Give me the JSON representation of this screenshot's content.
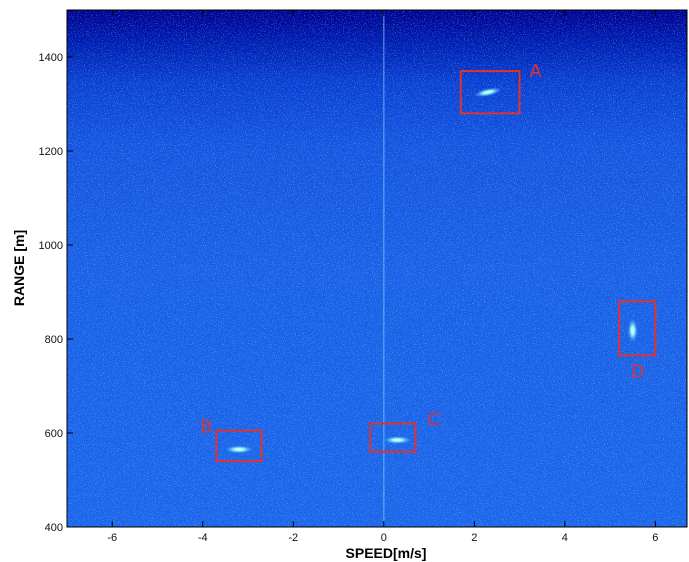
{
  "chart_data": {
    "type": "heatmap",
    "title": "",
    "xlabel": "SPEED[m/s]",
    "ylabel": "RANGE [m]",
    "xlim": [
      -7,
      6.7
    ],
    "ylim": [
      400,
      1500
    ],
    "x_ticks": [
      -6,
      -4,
      -2,
      0,
      2,
      4,
      6
    ],
    "y_ticks": [
      400,
      600,
      800,
      1000,
      1200,
      1400
    ],
    "x_tick_labels": [
      "-6",
      "-4",
      "-2",
      "0",
      "2",
      "4",
      "6"
    ],
    "y_tick_labels": [
      "400",
      "600",
      "800",
      "1000",
      "1200",
      "1400"
    ],
    "colormap": [
      "#00008b",
      "#0a2bd8",
      "#1a63f0",
      "#33a6ff",
      "#7de3ff",
      "#b8ff8c"
    ],
    "background_color": "#1a4fd6",
    "box_color": "#e0322f",
    "detections": [
      {
        "label": "A",
        "x_range": [
          1.7,
          3.0
        ],
        "y_range": [
          1280,
          1370
        ],
        "speed": 2.3,
        "range": 1325
      },
      {
        "label": "B",
        "x_range": [
          -3.7,
          -2.7
        ],
        "y_range": [
          540,
          605
        ],
        "speed": -3.2,
        "range": 565
      },
      {
        "label": "C",
        "x_range": [
          -0.3,
          0.7
        ],
        "y_range": [
          560,
          620
        ],
        "speed": 0.3,
        "range": 585
      },
      {
        "label": "D",
        "x_range": [
          5.2,
          6.0
        ],
        "y_range": [
          765,
          880
        ],
        "speed": 5.5,
        "range": 818
      }
    ]
  }
}
